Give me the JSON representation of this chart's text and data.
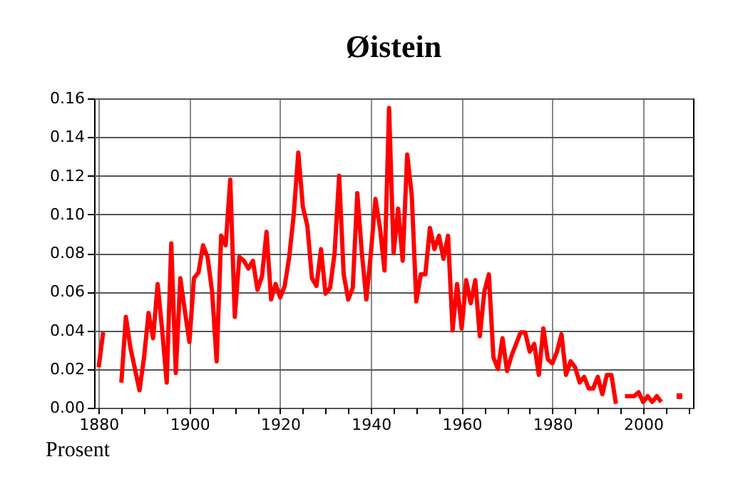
{
  "chart_data": {
    "type": "line",
    "title": "Øistein",
    "annotations": [
      "Prosent"
    ],
    "x": [
      1880,
      1881,
      1882,
      1883,
      1884,
      1885,
      1886,
      1887,
      1888,
      1889,
      1890,
      1891,
      1892,
      1893,
      1894,
      1895,
      1896,
      1897,
      1898,
      1899,
      1900,
      1901,
      1902,
      1903,
      1904,
      1905,
      1906,
      1907,
      1908,
      1909,
      1910,
      1911,
      1912,
      1913,
      1914,
      1915,
      1916,
      1917,
      1918,
      1919,
      1920,
      1921,
      1922,
      1923,
      1924,
      1925,
      1926,
      1927,
      1928,
      1929,
      1930,
      1931,
      1932,
      1933,
      1934,
      1935,
      1936,
      1937,
      1938,
      1939,
      1940,
      1941,
      1942,
      1943,
      1944,
      1945,
      1946,
      1947,
      1948,
      1949,
      1950,
      1951,
      1952,
      1953,
      1954,
      1955,
      1956,
      1957,
      1958,
      1959,
      1960,
      1961,
      1962,
      1963,
      1964,
      1965,
      1966,
      1967,
      1968,
      1969,
      1970,
      1971,
      1972,
      1973,
      1974,
      1975,
      1976,
      1977,
      1978,
      1979,
      1980,
      1981,
      1982,
      1983,
      1984,
      1985,
      1986,
      1987,
      1988,
      1989,
      1990,
      1991,
      1992,
      1993,
      1994,
      1995,
      1996,
      1997,
      1998,
      1999,
      2000,
      2001,
      2002,
      2003,
      2004,
      2005,
      2006,
      2007,
      2008
    ],
    "series": [
      {
        "color": "#ff0000",
        "values": [
          0.021,
          0.039,
          null,
          null,
          null,
          0.013,
          0.047,
          0.031,
          0.02,
          0.009,
          0.026,
          0.049,
          0.036,
          0.064,
          0.04,
          0.013,
          0.085,
          0.018,
          0.067,
          0.05,
          0.034,
          0.067,
          0.07,
          0.084,
          0.078,
          0.06,
          0.024,
          0.089,
          0.084,
          0.118,
          0.047,
          0.078,
          0.076,
          0.072,
          0.076,
          0.061,
          0.068,
          0.091,
          0.056,
          0.064,
          0.057,
          0.063,
          0.078,
          0.1,
          0.132,
          0.104,
          0.094,
          0.067,
          0.063,
          0.082,
          0.059,
          0.062,
          0.08,
          0.12,
          0.069,
          0.056,
          0.062,
          0.111,
          0.08,
          0.056,
          0.08,
          0.108,
          0.093,
          0.071,
          0.155,
          0.08,
          0.103,
          0.076,
          0.131,
          0.11,
          0.055,
          0.069,
          0.069,
          0.093,
          0.082,
          0.089,
          0.077,
          0.089,
          0.04,
          0.064,
          0.041,
          0.066,
          0.054,
          0.066,
          0.037,
          0.06,
          0.069,
          0.026,
          0.02,
          0.036,
          0.019,
          0.027,
          0.033,
          0.039,
          0.039,
          0.029,
          0.033,
          0.017,
          0.041,
          0.025,
          0.023,
          0.029,
          0.038,
          0.017,
          0.024,
          0.021,
          0.013,
          0.016,
          0.01,
          0.01,
          0.016,
          0.007,
          0.017,
          0.017,
          0.002,
          null,
          0.006,
          0.006,
          0.006,
          0.008,
          0.003,
          0.006,
          0.003,
          0.006,
          0.003,
          null,
          null,
          null,
          0.006
        ]
      }
    ],
    "xlim": [
      1879,
      2011
    ],
    "xticks": [
      1880,
      {
        "value": 1885,
        "label": null
      },
      {
        "value": 1890,
        "label": null
      },
      {
        "value": 1895,
        "label": null
      },
      1900,
      {
        "value": 1905,
        "label": null
      },
      {
        "value": 1910,
        "label": null
      },
      {
        "value": 1915,
        "label": null
      },
      1920,
      {
        "value": 1925,
        "label": null
      },
      {
        "value": 1930,
        "label": null
      },
      {
        "value": 1935,
        "label": null
      },
      1940,
      {
        "value": 1945,
        "label": null
      },
      {
        "value": 1950,
        "label": null
      },
      {
        "value": 1955,
        "label": null
      },
      1960,
      {
        "value": 1965,
        "label": null
      },
      {
        "value": 1970,
        "label": null
      },
      {
        "value": 1975,
        "label": null
      },
      1980,
      {
        "value": 1985,
        "label": null
      },
      {
        "value": 1990,
        "label": null
      },
      {
        "value": 1995,
        "label": null
      },
      2000,
      {
        "value": 2005,
        "label": null
      },
      {
        "value": 2010,
        "label": null
      }
    ],
    "ylim": [
      0,
      0.16
    ],
    "yticks": [
      {
        "value": 0,
        "label": "0.00"
      },
      {
        "value": 0.02,
        "label": "0.02"
      },
      {
        "value": 0.04,
        "label": "0.04"
      },
      {
        "value": 0.06,
        "label": "0.06"
      },
      {
        "value": 0.08,
        "label": "0.08"
      },
      {
        "value": 0.1,
        "label": "0.10"
      },
      {
        "value": 0.12,
        "label": "0.12"
      },
      {
        "value": 0.14,
        "label": "0.14"
      },
      {
        "value": 0.16,
        "label": "0.16"
      }
    ],
    "grid": true,
    "legend": false,
    "marker": "none",
    "line_style": "solid"
  }
}
